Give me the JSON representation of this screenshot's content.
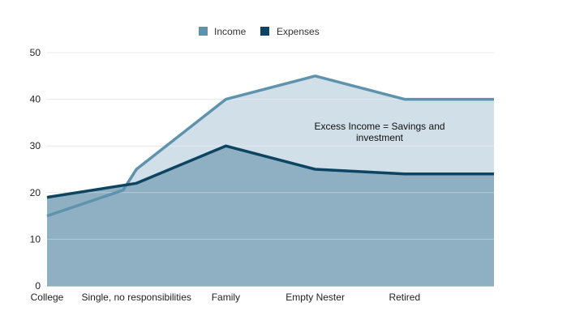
{
  "chart_data": {
    "type": "area",
    "categories": [
      "College",
      "Single, no responsibilities",
      "Family",
      "Empty Nester",
      "Retired",
      ""
    ],
    "series": [
      {
        "name": "Income",
        "values": [
          15,
          25,
          40,
          45,
          40,
          40
        ],
        "color": "#5f93ad"
      },
      {
        "name": "Expenses",
        "values": [
          19,
          22,
          30,
          25,
          24,
          24
        ],
        "color": "#0d4462"
      }
    ],
    "x_positions": [
      0,
      1,
      2,
      3,
      4,
      5
    ],
    "extra_points": {
      "Income": [
        [
          0.85,
          20.5
        ]
      ]
    },
    "ylim": [
      0,
      50
    ],
    "yticks": [
      0,
      10,
      20,
      30,
      40,
      50
    ],
    "grid": true,
    "legend_position": "top-center",
    "fill_colors": {
      "excess": "#d0dfe8",
      "under_expenses": "#8eb0c2"
    },
    "annotation": {
      "lines": [
        "Excess Income = Savings and",
        "investment"
      ]
    },
    "title": "",
    "xlabel": "",
    "ylabel": ""
  }
}
